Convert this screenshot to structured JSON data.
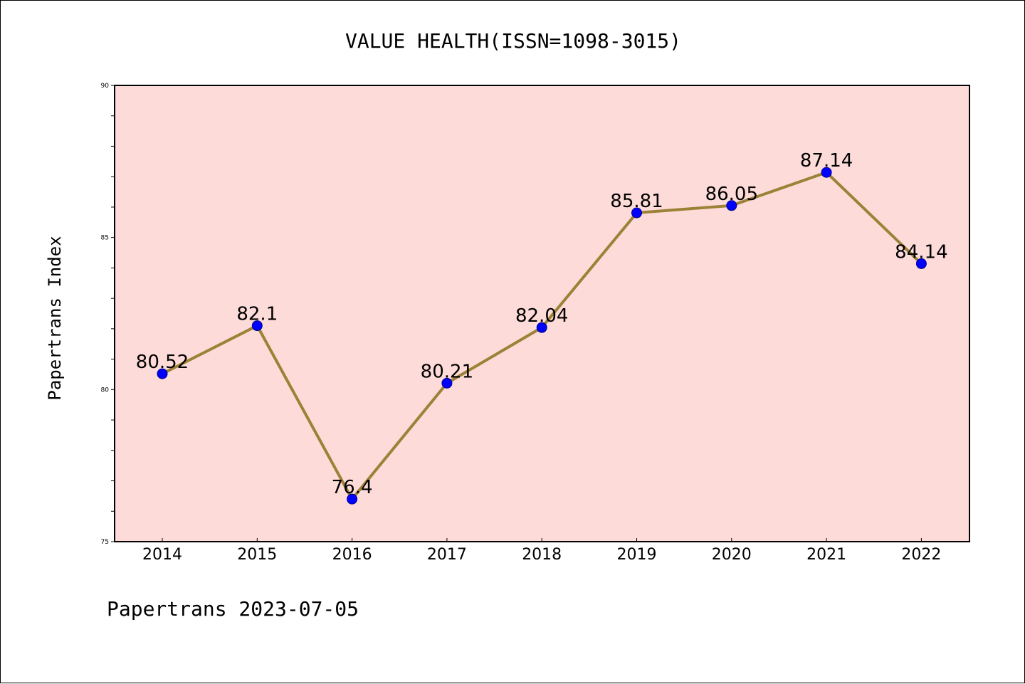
{
  "chart_data": {
    "type": "line",
    "title": "VALUE HEALTH(ISSN=1098-3015)",
    "xlabel": "",
    "ylabel": "Papertrans Index",
    "x": [
      "2014",
      "2015",
      "2016",
      "2017",
      "2018",
      "2019",
      "2020",
      "2021",
      "2022"
    ],
    "series": [
      {
        "values": [
          80.52,
          82.1,
          76.4,
          80.21,
          82.04,
          85.81,
          86.05,
          87.14,
          84.14
        ],
        "labels": [
          "80.52",
          "82.1",
          "76.4",
          "80.21",
          "82.04",
          "85.81",
          "86.05",
          "87.14",
          "84.14"
        ]
      }
    ],
    "ylim": [
      75,
      90
    ],
    "yticks": [
      "75",
      "80",
      "85",
      "90"
    ],
    "grid": false,
    "legend": "none",
    "colors": {
      "plot_background": "#fddbd8",
      "line": "#9b8236",
      "marker": "#0000ff"
    }
  },
  "footer": {
    "text": "Papertrans 2023-07-05"
  }
}
